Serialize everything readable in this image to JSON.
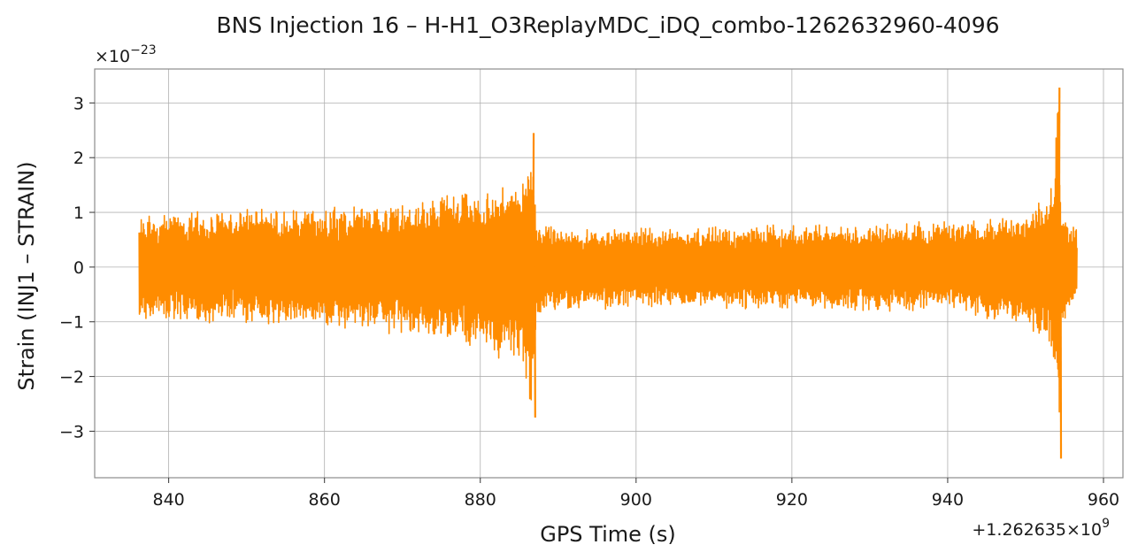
{
  "chart_data": {
    "type": "line",
    "title": "BNS Injection 16 – H-H1_O3ReplayMDC_iDQ_combo-1262632960-4096",
    "xlabel": "GPS Time (s)",
    "ylabel": "Strain (INJ1 – STRAIN)",
    "y_multiplier_label": "×10",
    "y_multiplier_exp": "−23",
    "x_offset_label": "+1.262635×10",
    "x_offset_exp": "9",
    "xlim": [
      830.5,
      962.5
    ],
    "ylim": [
      -3.85,
      3.62
    ],
    "grid": true,
    "xticks": [
      840,
      860,
      880,
      900,
      920,
      940,
      960
    ],
    "xtick_labels": [
      "840",
      "860",
      "880",
      "900",
      "920",
      "940",
      "960"
    ],
    "yticks": [
      -3,
      -2,
      -1,
      0,
      1,
      2,
      3
    ],
    "ytick_labels": [
      "−3",
      "−2",
      "−1",
      "0",
      "1",
      "2",
      "3"
    ],
    "series": [
      {
        "color": "#ff8c00",
        "x_start": 836.2,
        "x_end": 956.6,
        "envelope": {
          "x": [
            836.2,
            845,
            855,
            865,
            870,
            875,
            880,
            883,
            885,
            886,
            886.8,
            887.2,
            890,
            900,
            910,
            920,
            930,
            940,
            945,
            950,
            952,
            953.5,
            954.2,
            954.6,
            955.2,
            956.6
          ],
          "y_upper": [
            0.95,
            1.05,
            1.1,
            1.15,
            1.2,
            1.3,
            1.4,
            1.55,
            1.75,
            2.0,
            2.6,
            0.9,
            0.75,
            0.72,
            0.75,
            0.78,
            0.8,
            0.85,
            0.95,
            1.05,
            1.2,
            1.6,
            3.3,
            1.2,
            0.8,
            0.75
          ],
          "y_lower": [
            -0.95,
            -1.05,
            -1.1,
            -1.15,
            -1.25,
            -1.35,
            -1.55,
            -1.75,
            -2.0,
            -2.3,
            -2.8,
            -0.95,
            -0.8,
            -0.75,
            -0.78,
            -0.8,
            -0.82,
            -0.88,
            -0.95,
            -1.1,
            -1.3,
            -1.8,
            -3.5,
            -1.3,
            -0.85,
            -0.8
          ]
        }
      }
    ]
  }
}
